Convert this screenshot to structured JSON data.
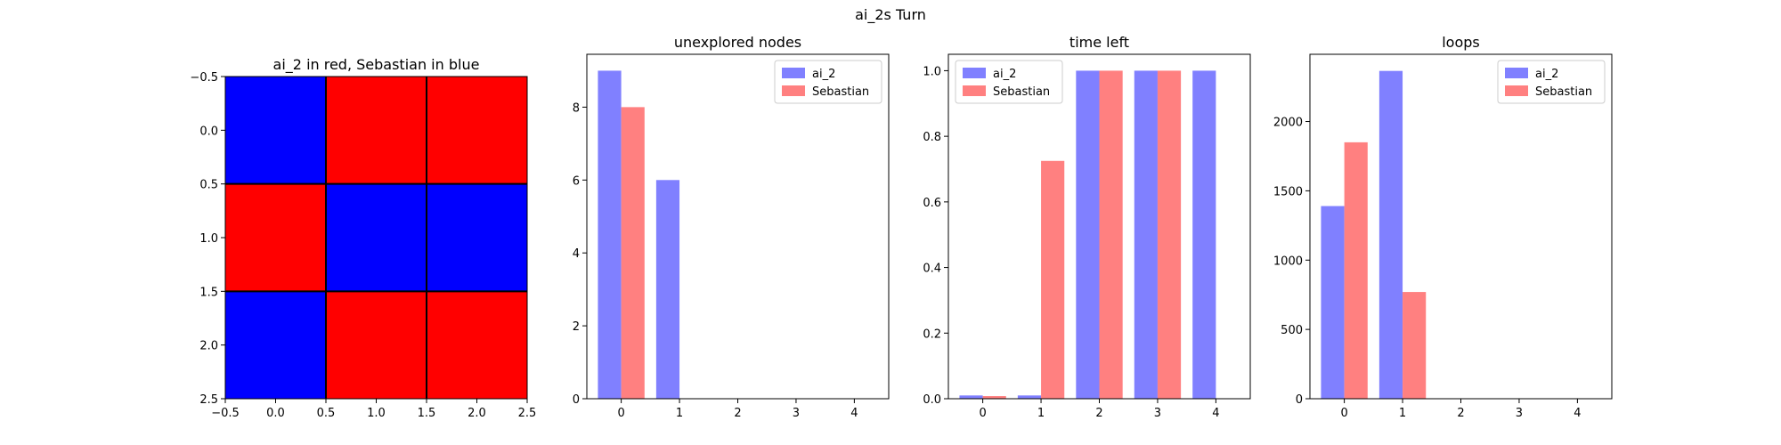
{
  "figure": {
    "suptitle": "ai_2s Turn"
  },
  "chart_data": [
    {
      "type": "heatmap",
      "title": "ai_2 in red, Sebastian in blue",
      "grid": [
        [
          "blue",
          "red",
          "red"
        ],
        [
          "red",
          "blue",
          "blue"
        ],
        [
          "blue",
          "red",
          "red"
        ]
      ],
      "colors": {
        "red": "#ff0000",
        "blue": "#0000ff",
        "line": "#000000"
      },
      "xlim": [
        -0.5,
        2.5
      ],
      "ylim": [
        2.5,
        -0.5
      ],
      "xticks": [
        -0.5,
        0.0,
        0.5,
        1.0,
        1.5,
        2.0,
        2.5
      ],
      "xtick_labels": [
        "−0.5",
        "0.0",
        "0.5",
        "1.0",
        "1.5",
        "2.0",
        "2.5"
      ],
      "yticks": [
        -0.5,
        0.0,
        0.5,
        1.0,
        1.5,
        2.0,
        2.5
      ],
      "ytick_labels": [
        "−0.5",
        "0.0",
        "0.5",
        "1.0",
        "1.5",
        "2.0",
        "2.5"
      ]
    },
    {
      "type": "bar",
      "title": "unexplored nodes",
      "categories": [
        "0",
        "1",
        "2",
        "3",
        "4"
      ],
      "series": [
        {
          "name": "ai_2",
          "color": "#8080ff",
          "values": [
            9,
            6,
            0,
            0,
            0
          ]
        },
        {
          "name": "Sebastian",
          "color": "#ff8080",
          "values": [
            8,
            0,
            0,
            0,
            0
          ]
        }
      ],
      "ylim": [
        0,
        9.45
      ],
      "yticks": [
        0,
        2,
        4,
        6,
        8
      ],
      "ytick_labels": [
        "0",
        "2",
        "4",
        "6",
        "8"
      ],
      "legend": "top-right"
    },
    {
      "type": "bar",
      "title": "time left",
      "categories": [
        "0",
        "1",
        "2",
        "3",
        "4"
      ],
      "series": [
        {
          "name": "ai_2",
          "color": "#8080ff",
          "values": [
            0.01,
            0.01,
            1.0,
            1.0,
            1.0
          ]
        },
        {
          "name": "Sebastian",
          "color": "#ff8080",
          "values": [
            0.008,
            0.725,
            1.0,
            1.0,
            0
          ]
        }
      ],
      "ylim": [
        0,
        1.05
      ],
      "yticks": [
        0,
        0.2,
        0.4,
        0.6,
        0.8,
        1.0
      ],
      "ytick_labels": [
        "0.0",
        "0.2",
        "0.4",
        "0.6",
        "0.8",
        "1.0"
      ],
      "legend": "top-left"
    },
    {
      "type": "bar",
      "title": "loops",
      "categories": [
        "0",
        "1",
        "2",
        "3",
        "4"
      ],
      "series": [
        {
          "name": "ai_2",
          "color": "#8080ff",
          "values": [
            1390,
            2365,
            0,
            0,
            0
          ]
        },
        {
          "name": "Sebastian",
          "color": "#ff8080",
          "values": [
            1850,
            770,
            0,
            0,
            0
          ]
        }
      ],
      "ylim": [
        0,
        2485
      ],
      "yticks": [
        0,
        500,
        1000,
        1500,
        2000
      ],
      "ytick_labels": [
        "0",
        "500",
        "1000",
        "1500",
        "2000"
      ],
      "legend": "top-right"
    }
  ]
}
